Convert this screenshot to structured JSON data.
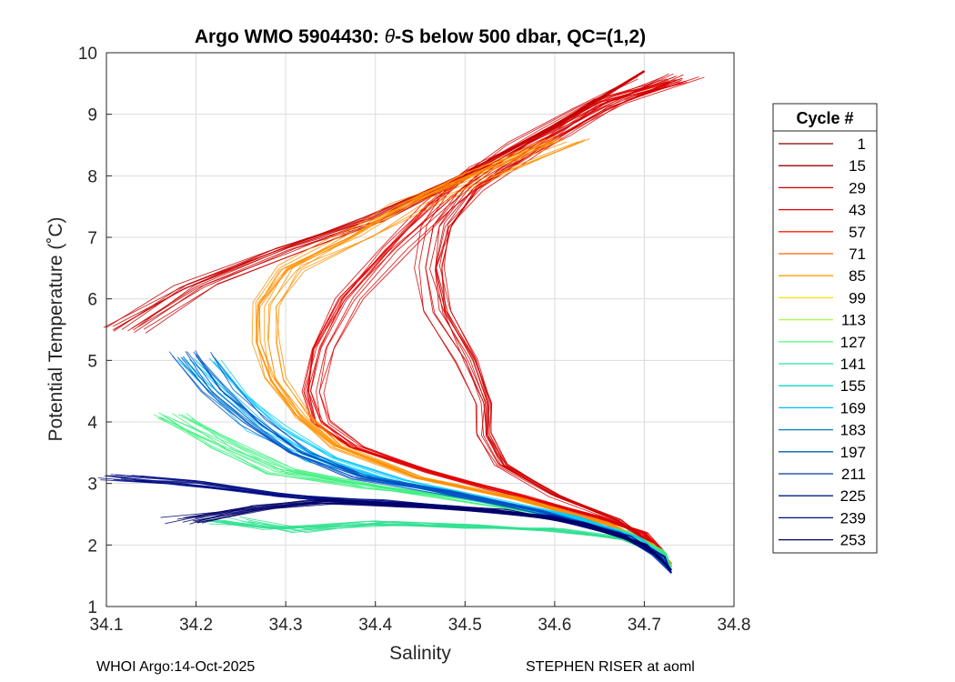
{
  "chart_data": {
    "type": "line",
    "title_prefix": "Argo WMO 5904430: ",
    "title_theta": "θ",
    "title_suffix": "-S below 500 dbar,  QC=(1,2)",
    "xlabel": "Salinity",
    "ylabel": "Potential Temperature (˚C)",
    "xlim": [
      34.1,
      34.8
    ],
    "ylim": [
      1,
      10
    ],
    "x_ticks": [
      "34.1",
      "34.2",
      "34.3",
      "34.4",
      "34.5",
      "34.6",
      "34.7",
      "34.8"
    ],
    "y_ticks": [
      "1",
      "2",
      "3",
      "4",
      "5",
      "6",
      "7",
      "8",
      "9",
      "10"
    ],
    "grid": true,
    "legend_title": "Cycle #",
    "legend_position": "right-outside",
    "series": [
      {
        "name": "1",
        "color": "#800000"
      },
      {
        "name": "15",
        "color": "#a10000"
      },
      {
        "name": "29",
        "color": "#c40000"
      },
      {
        "name": "43",
        "color": "#e60000"
      },
      {
        "name": "57",
        "color": "#ff2000"
      },
      {
        "name": "71",
        "color": "#ff6000"
      },
      {
        "name": "85",
        "color": "#ffa000"
      },
      {
        "name": "99",
        "color": "#ffe000"
      },
      {
        "name": "113",
        "color": "#a8ff40"
      },
      {
        "name": "127",
        "color": "#60ff80"
      },
      {
        "name": "141",
        "color": "#20e8a0"
      },
      {
        "name": "155",
        "color": "#10d8c0"
      },
      {
        "name": "169",
        "color": "#00c0ff"
      },
      {
        "name": "183",
        "color": "#0080c0"
      },
      {
        "name": "197",
        "color": "#0060b0"
      },
      {
        "name": "211",
        "color": "#003c9c"
      },
      {
        "name": "225",
        "color": "#00208a"
      },
      {
        "name": "239",
        "color": "#000c84"
      },
      {
        "name": "253",
        "color": "#00006a"
      }
    ],
    "profile_shapes": [
      {
        "group": "red",
        "color": "#e00000",
        "points": [
          [
            34.74,
            9.55
          ],
          [
            34.66,
            9.2
          ],
          [
            34.6,
            8.7
          ],
          [
            34.52,
            8.1
          ],
          [
            34.47,
            7.5
          ],
          [
            34.42,
            6.8
          ],
          [
            34.37,
            6.0
          ],
          [
            34.34,
            5.2
          ],
          [
            34.33,
            4.5
          ],
          [
            34.34,
            4.0
          ],
          [
            34.38,
            3.6
          ],
          [
            34.46,
            3.2
          ],
          [
            34.56,
            2.8
          ],
          [
            34.65,
            2.45
          ],
          [
            34.7,
            2.2
          ],
          [
            34.72,
            1.9
          ],
          [
            34.73,
            1.65
          ]
        ]
      },
      {
        "group": "red-wide",
        "color": "#d00000",
        "points": [
          [
            34.72,
            9.6
          ],
          [
            34.64,
            9.1
          ],
          [
            34.57,
            8.5
          ],
          [
            34.5,
            7.8
          ],
          [
            34.47,
            7.2
          ],
          [
            34.46,
            6.5
          ],
          [
            34.47,
            5.8
          ],
          [
            34.5,
            5.0
          ],
          [
            34.52,
            4.3
          ],
          [
            34.52,
            3.8
          ],
          [
            34.54,
            3.3
          ],
          [
            34.6,
            2.8
          ],
          [
            34.67,
            2.4
          ],
          [
            34.71,
            2.0
          ],
          [
            34.73,
            1.7
          ]
        ]
      },
      {
        "group": "red-left",
        "color": "#c80000",
        "points": [
          [
            34.12,
            5.5
          ],
          [
            34.2,
            6.2
          ],
          [
            34.3,
            6.8
          ],
          [
            34.4,
            7.3
          ],
          [
            34.5,
            8.0
          ],
          [
            34.6,
            8.8
          ],
          [
            34.7,
            9.7
          ]
        ]
      },
      {
        "group": "orange",
        "color": "#ff9000",
        "points": [
          [
            34.62,
            8.6
          ],
          [
            34.52,
            8.0
          ],
          [
            34.44,
            7.5
          ],
          [
            34.38,
            7.0
          ],
          [
            34.31,
            6.5
          ],
          [
            34.28,
            5.9
          ],
          [
            34.28,
            5.3
          ],
          [
            34.29,
            4.7
          ],
          [
            34.32,
            4.1
          ],
          [
            34.36,
            3.6
          ],
          [
            34.45,
            3.1
          ],
          [
            34.56,
            2.75
          ],
          [
            34.66,
            2.35
          ],
          [
            34.71,
            2.0
          ],
          [
            34.73,
            1.7
          ]
        ]
      },
      {
        "group": "green",
        "color": "#40f080",
        "points": [
          [
            34.18,
            4.1
          ],
          [
            34.24,
            3.6
          ],
          [
            34.3,
            3.2
          ],
          [
            34.4,
            2.95
          ],
          [
            34.5,
            2.75
          ],
          [
            34.6,
            2.5
          ],
          [
            34.68,
            2.2
          ],
          [
            34.72,
            1.9
          ],
          [
            34.73,
            1.65
          ]
        ]
      },
      {
        "group": "green-low",
        "color": "#30e090",
        "points": [
          [
            34.23,
            2.4
          ],
          [
            34.3,
            2.25
          ],
          [
            34.4,
            2.35
          ],
          [
            34.5,
            2.3
          ],
          [
            34.6,
            2.25
          ],
          [
            34.68,
            2.1
          ],
          [
            34.72,
            1.85
          ],
          [
            34.73,
            1.6
          ]
        ]
      },
      {
        "group": "cyan",
        "color": "#00c8ff",
        "points": [
          [
            34.2,
            5.0
          ],
          [
            34.24,
            4.4
          ],
          [
            34.28,
            3.9
          ],
          [
            34.34,
            3.4
          ],
          [
            34.42,
            3.05
          ],
          [
            34.52,
            2.75
          ],
          [
            34.62,
            2.45
          ],
          [
            34.69,
            2.1
          ],
          [
            34.72,
            1.8
          ],
          [
            34.73,
            1.6
          ]
        ]
      },
      {
        "group": "blue",
        "color": "#0050c0",
        "points": [
          [
            34.19,
            5.1
          ],
          [
            34.22,
            4.5
          ],
          [
            34.26,
            4.0
          ],
          [
            34.31,
            3.5
          ],
          [
            34.38,
            3.1
          ],
          [
            34.48,
            2.85
          ],
          [
            34.58,
            2.55
          ],
          [
            34.67,
            2.2
          ],
          [
            34.71,
            1.85
          ],
          [
            34.73,
            1.55
          ]
        ]
      },
      {
        "group": "navy",
        "color": "#000c84",
        "points": [
          [
            34.12,
            3.1
          ],
          [
            34.2,
            3.0
          ],
          [
            34.3,
            2.8
          ],
          [
            34.4,
            2.7
          ],
          [
            34.5,
            2.6
          ],
          [
            34.6,
            2.45
          ],
          [
            34.68,
            2.15
          ],
          [
            34.72,
            1.8
          ],
          [
            34.73,
            1.55
          ]
        ]
      },
      {
        "group": "navy-low",
        "color": "#00006a",
        "points": [
          [
            34.19,
            2.4
          ],
          [
            34.26,
            2.6
          ],
          [
            34.34,
            2.7
          ],
          [
            34.44,
            2.65
          ],
          [
            34.54,
            2.55
          ],
          [
            34.63,
            2.35
          ],
          [
            34.7,
            2.0
          ],
          [
            34.73,
            1.6
          ]
        ]
      }
    ]
  },
  "footer": {
    "left": "WHOI Argo:14-Oct-2025",
    "right": "STEPHEN RISER at aoml"
  }
}
